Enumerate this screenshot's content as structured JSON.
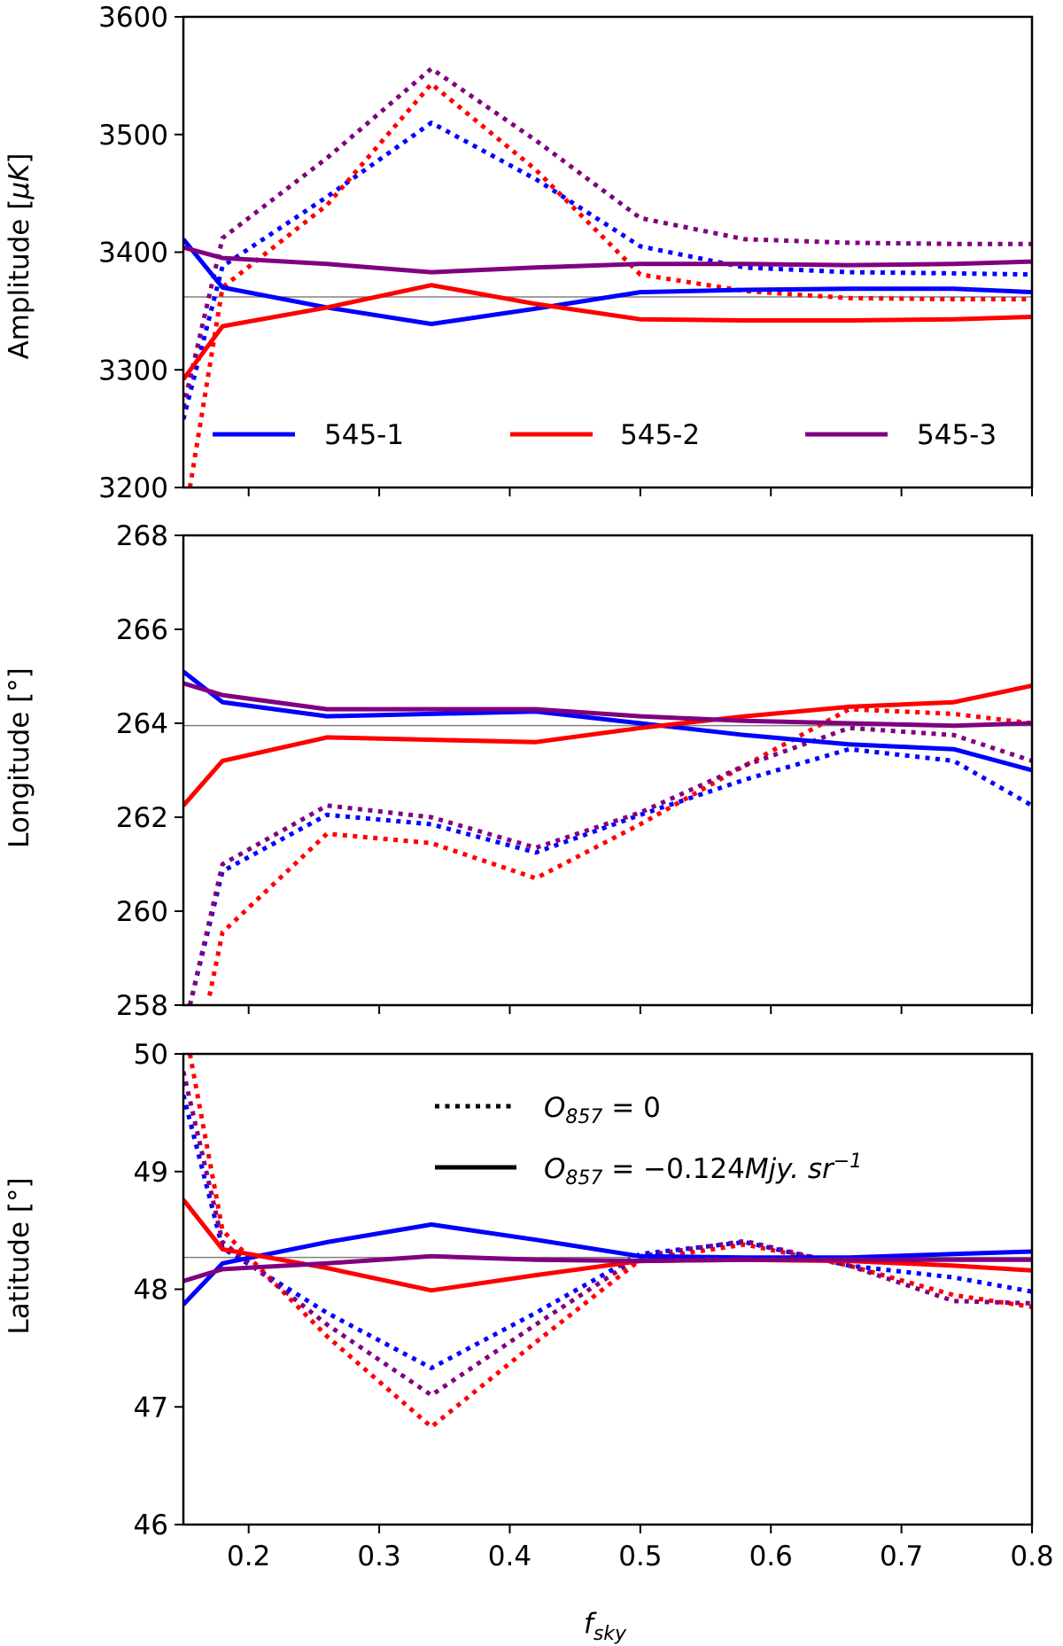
{
  "chart_data": [
    {
      "type": "line",
      "ylabel": "Amplitude [μK]",
      "ylabel_parts": [
        "Amplitude [",
        "μK",
        "]"
      ],
      "xlim": [
        0.15,
        0.8
      ],
      "ylim": [
        3200,
        3600
      ],
      "yticks": [
        3200,
        3300,
        3400,
        3500,
        3600
      ],
      "ytick_labels": [
        "3200",
        "3300",
        "3400",
        "3500",
        "3600"
      ],
      "reference_value": 3362,
      "legend": {
        "placement": "lower center",
        "entries": [
          "545-1",
          "545-2",
          "545-3"
        ]
      },
      "series": [
        {
          "name": "545-1",
          "color": "#0000ff",
          "style": "solid",
          "x": [
            0.15,
            0.18,
            0.26,
            0.34,
            0.42,
            0.5,
            0.58,
            0.66,
            0.74,
            0.8
          ],
          "y": [
            3411,
            3370,
            3353,
            3339,
            3352,
            3366,
            3368,
            3369,
            3369,
            3366
          ]
        },
        {
          "name": "545-2",
          "color": "#ff0000",
          "style": "solid",
          "x": [
            0.15,
            0.18,
            0.26,
            0.34,
            0.42,
            0.5,
            0.58,
            0.66,
            0.74,
            0.8
          ],
          "y": [
            3292,
            3337,
            3353,
            3372,
            3356,
            3343,
            3342,
            3342,
            3343,
            3345
          ]
        },
        {
          "name": "545-3",
          "color": "#800080",
          "style": "solid",
          "x": [
            0.15,
            0.18,
            0.26,
            0.34,
            0.42,
            0.5,
            0.58,
            0.66,
            0.74,
            0.8
          ],
          "y": [
            3404,
            3395,
            3390,
            3383,
            3387,
            3390,
            3390,
            3389,
            3390,
            3392
          ]
        },
        {
          "name": "",
          "color": "#0000ff",
          "style": "dotted",
          "x": [
            0.15,
            0.18,
            0.26,
            0.34,
            0.42,
            0.5,
            0.58,
            0.66,
            0.74,
            0.8
          ],
          "y": [
            3258,
            3388,
            3447,
            3510,
            3462,
            3405,
            3387,
            3383,
            3382,
            3381
          ]
        },
        {
          "name": "",
          "color": "#ff0000",
          "style": "dotted",
          "x": [
            0.155,
            0.18,
            0.26,
            0.34,
            0.42,
            0.5,
            0.58,
            0.66,
            0.74,
            0.8
          ],
          "y": [
            3200,
            3370,
            3440,
            3543,
            3470,
            3381,
            3367,
            3361,
            3360,
            3360
          ]
        },
        {
          "name": "",
          "color": "#800080",
          "style": "dotted",
          "x": [
            0.15,
            0.18,
            0.26,
            0.34,
            0.42,
            0.5,
            0.58,
            0.66,
            0.74,
            0.8
          ],
          "y": [
            3268,
            3412,
            3480,
            3556,
            3495,
            3429,
            3411,
            3408,
            3407,
            3407
          ]
        }
      ]
    },
    {
      "type": "line",
      "ylabel": "Longitude [°]",
      "xlim": [
        0.15,
        0.8
      ],
      "ylim": [
        258,
        268
      ],
      "yticks": [
        258,
        260,
        262,
        264,
        266,
        268
      ],
      "ytick_labels": [
        "258",
        "260",
        "262",
        "264",
        "266",
        "268"
      ],
      "reference_value": 263.95,
      "series": [
        {
          "name": "545-1",
          "color": "#0000ff",
          "style": "solid",
          "x": [
            0.15,
            0.18,
            0.26,
            0.34,
            0.42,
            0.5,
            0.58,
            0.66,
            0.74,
            0.8
          ],
          "y": [
            265.1,
            264.45,
            264.15,
            264.2,
            264.25,
            264.0,
            263.75,
            263.55,
            263.45,
            263.0
          ]
        },
        {
          "name": "545-2",
          "color": "#ff0000",
          "style": "solid",
          "x": [
            0.15,
            0.18,
            0.26,
            0.34,
            0.42,
            0.5,
            0.58,
            0.66,
            0.74,
            0.8
          ],
          "y": [
            262.25,
            263.2,
            263.7,
            263.65,
            263.6,
            263.9,
            264.15,
            264.35,
            264.45,
            264.8
          ]
        },
        {
          "name": "545-3",
          "color": "#800080",
          "style": "solid",
          "x": [
            0.15,
            0.18,
            0.26,
            0.34,
            0.42,
            0.5,
            0.58,
            0.66,
            0.74,
            0.8
          ],
          "y": [
            264.85,
            264.6,
            264.3,
            264.3,
            264.3,
            264.15,
            264.05,
            264.0,
            263.95,
            264.0
          ]
        },
        {
          "name": "",
          "color": "#0000ff",
          "style": "dotted",
          "x": [
            0.155,
            0.18,
            0.26,
            0.34,
            0.42,
            0.5,
            0.58,
            0.66,
            0.74,
            0.8
          ],
          "y": [
            258.0,
            260.85,
            262.05,
            261.85,
            261.25,
            262.05,
            262.8,
            263.45,
            263.2,
            262.25
          ]
        },
        {
          "name": "",
          "color": "#ff0000",
          "style": "dotted",
          "x": [
            0.17,
            0.18,
            0.26,
            0.34,
            0.42,
            0.5,
            0.58,
            0.66,
            0.74,
            0.8
          ],
          "y": [
            258.2,
            259.55,
            261.65,
            261.45,
            260.7,
            261.85,
            263.1,
            264.3,
            264.2,
            264.0
          ]
        },
        {
          "name": "",
          "color": "#800080",
          "style": "dotted",
          "x": [
            0.155,
            0.18,
            0.26,
            0.34,
            0.42,
            0.5,
            0.58,
            0.66,
            0.74,
            0.8
          ],
          "y": [
            258.0,
            261.0,
            262.25,
            262.0,
            261.35,
            262.1,
            263.1,
            263.9,
            263.75,
            263.2
          ]
        }
      ]
    },
    {
      "type": "line",
      "ylabel": "Latitude [°]",
      "xlabel": "f",
      "xlabel_sub": "sky",
      "xlim": [
        0.15,
        0.8
      ],
      "ylim": [
        46,
        50
      ],
      "xticks": [
        0.2,
        0.3,
        0.4,
        0.5,
        0.6,
        0.7,
        0.8
      ],
      "xtick_labels": [
        "0.2",
        "0.3",
        "0.4",
        "0.5",
        "0.6",
        "0.7",
        "0.8"
      ],
      "yticks": [
        46,
        47,
        48,
        49,
        50
      ],
      "ytick_labels": [
        "46",
        "47",
        "48",
        "49",
        "50"
      ],
      "reference_value": 48.27,
      "legend": {
        "placement": "upper center",
        "entries": [
          {
            "style": "dotted",
            "label": "O",
            "sub": "857",
            "rest": " = 0"
          },
          {
            "style": "solid",
            "label": "O",
            "sub": "857",
            "rest": " = −0.124",
            "unit": "Mjy. sr",
            "sup": "−1"
          }
        ]
      },
      "series": [
        {
          "name": "545-1",
          "color": "#0000ff",
          "style": "solid",
          "x": [
            0.15,
            0.18,
            0.26,
            0.34,
            0.42,
            0.5,
            0.58,
            0.66,
            0.74,
            0.8
          ],
          "y": [
            47.87,
            48.22,
            48.4,
            48.55,
            48.42,
            48.28,
            48.27,
            48.27,
            48.3,
            48.32
          ]
        },
        {
          "name": "545-2",
          "color": "#ff0000",
          "style": "solid",
          "x": [
            0.15,
            0.18,
            0.26,
            0.34,
            0.42,
            0.5,
            0.58,
            0.66,
            0.74,
            0.8
          ],
          "y": [
            48.76,
            48.34,
            48.18,
            47.99,
            48.12,
            48.24,
            48.25,
            48.24,
            48.2,
            48.16
          ]
        },
        {
          "name": "545-3",
          "color": "#800080",
          "style": "solid",
          "x": [
            0.15,
            0.18,
            0.26,
            0.34,
            0.42,
            0.5,
            0.58,
            0.66,
            0.74,
            0.8
          ],
          "y": [
            48.07,
            48.17,
            48.22,
            48.28,
            48.25,
            48.24,
            48.25,
            48.25,
            48.25,
            48.25
          ]
        },
        {
          "name": "",
          "color": "#0000ff",
          "style": "dotted",
          "x": [
            0.15,
            0.18,
            0.26,
            0.34,
            0.42,
            0.5,
            0.58,
            0.66,
            0.74,
            0.8
          ],
          "y": [
            49.65,
            48.35,
            47.8,
            47.33,
            47.8,
            48.3,
            48.4,
            48.2,
            48.1,
            47.98
          ]
        },
        {
          "name": "",
          "color": "#ff0000",
          "style": "dotted",
          "x": [
            0.155,
            0.18,
            0.26,
            0.34,
            0.42,
            0.5,
            0.58,
            0.66,
            0.74,
            0.8
          ],
          "y": [
            50.0,
            48.5,
            47.6,
            46.83,
            47.55,
            48.25,
            48.38,
            48.2,
            47.95,
            47.85
          ]
        },
        {
          "name": "",
          "color": "#800080",
          "style": "dotted",
          "x": [
            0.15,
            0.18,
            0.26,
            0.34,
            0.42,
            0.5,
            0.58,
            0.66,
            0.74,
            0.8
          ],
          "y": [
            49.85,
            48.4,
            47.7,
            47.1,
            47.7,
            48.28,
            48.41,
            48.2,
            47.9,
            47.88
          ]
        }
      ]
    }
  ]
}
